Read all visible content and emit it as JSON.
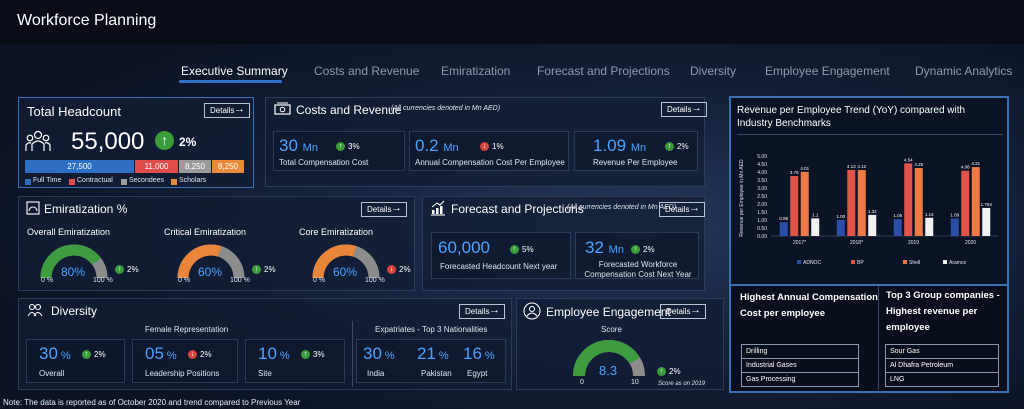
{
  "app": {
    "title": "Workforce Planning"
  },
  "tabs": [
    {
      "label": "Executive Summary",
      "active": true
    },
    {
      "label": "Costs and Revenue"
    },
    {
      "label": "Emiratization"
    },
    {
      "label": "Forecast and Projections"
    },
    {
      "label": "Diversity"
    },
    {
      "label": "Employee Engagement"
    },
    {
      "label": "Dynamic Analytics"
    }
  ],
  "details_label": "Details",
  "headcount": {
    "title": "Total Headcount",
    "value": "55,000",
    "trend": "2%",
    "segments": [
      {
        "label": "27,500",
        "value": 27500,
        "color": "#2e6fc4",
        "legend": "Full Time"
      },
      {
        "label": "11,000",
        "value": 11000,
        "color": "#e04b4b",
        "legend": "Contractual"
      },
      {
        "label": "8,250",
        "value": 8250,
        "color": "#9a9a9a",
        "legend": "Secondees"
      },
      {
        "label": "8,250",
        "value": 8250,
        "color": "#e88a3a",
        "legend": "Scholars"
      }
    ]
  },
  "costs": {
    "title": "Costs and Revenue",
    "note": "(All currencies denoted in Mn AED)",
    "kpis": [
      {
        "value": "30",
        "unit": "Mn",
        "trend": "3%",
        "dir": "up",
        "label": "Total Compensation Cost"
      },
      {
        "value": "0.2",
        "unit": "Mn",
        "trend": "1%",
        "dir": "down",
        "label": "Annual Compensation Cost Per Employee"
      },
      {
        "value": "1.09",
        "unit": "Mn",
        "trend": "2%",
        "dir": "up",
        "label": "Revenue Per Employee"
      }
    ]
  },
  "emiratization": {
    "title": "Emiratization %",
    "gauges": [
      {
        "title": "Overall Emiratization",
        "value": "80%",
        "pct": 80,
        "color": "#3e9b40",
        "min": "0 %",
        "max": "100 %",
        "trend": "2%",
        "dir": "up"
      },
      {
        "title": "Critical Emiratization",
        "value": "60%",
        "pct": 60,
        "color": "#e8853a",
        "min": "0 %",
        "max": "100 %",
        "trend": "2%",
        "dir": "up"
      },
      {
        "title": "Core Emiratization",
        "value": "60%",
        "pct": 60,
        "color": "#e8853a",
        "min": "0 %",
        "max": "100 %",
        "trend": "2%",
        "dir": "down"
      }
    ]
  },
  "forecast": {
    "title": "Forecast and Projections",
    "note": "(All currencies denoted in Mn AED)",
    "kpis": [
      {
        "value": "60,000",
        "unit": "",
        "trend": "5%",
        "label": "Forecasted Headcount Next year"
      },
      {
        "value": "32",
        "unit": "Mn",
        "trend": "2%",
        "label": "Forecasted Workforce Compensation Cost Next Year"
      }
    ]
  },
  "diversity": {
    "title": "Diversity",
    "female_title": "Female Representation",
    "female": [
      {
        "value": "30",
        "unit": "%",
        "trend": "2%",
        "dir": "up",
        "label": "Overall"
      },
      {
        "value": "05",
        "unit": "%",
        "trend": "2%",
        "dir": "down",
        "label": "Leadership Positions"
      },
      {
        "value": "10",
        "unit": "%",
        "trend": "3%",
        "dir": "up",
        "label": "Site"
      }
    ],
    "expat_title": "Expatriates - Top 3 Nationalities",
    "expat": [
      {
        "value": "30",
        "unit": "%",
        "label": "India"
      },
      {
        "value": "21",
        "unit": "%",
        "label": "Pakistan"
      },
      {
        "value": "16",
        "unit": "%",
        "label": "Egypt"
      }
    ]
  },
  "engagement": {
    "title": "Employee Engagement",
    "score_label": "Score",
    "value": "8.3",
    "score": 8.3,
    "min": "0",
    "max": "10",
    "trend": "2%",
    "note": "Score as on 2019"
  },
  "revenue_chart": {
    "title": "Revenue per Employee Trend (YoY) compared with Industry Benchmarks"
  },
  "chart_data": {
    "type": "bar",
    "title": "Revenue per Employee Trend (YoY) compared with Industry Benchmarks",
    "ylabel": "Revenue per Employee in Mn AED",
    "xlabel": "",
    "ylim": [
      0,
      5
    ],
    "yticks": [
      "0.00",
      "0.50",
      "1.00",
      "1.50",
      "2.00",
      "2.50",
      "3.00",
      "3.50",
      "4.00",
      "4.50",
      "5.00"
    ],
    "categories": [
      "2017*",
      "2018*",
      "2019",
      "2020"
    ],
    "series": [
      {
        "name": "ADNOC",
        "color": "#2b4ea8",
        "values": [
          0.86,
          1.0,
          1.05,
          1.09
        ],
        "labels": [
          "0.86",
          "1.00",
          "1.05",
          "1.09"
        ]
      },
      {
        "name": "BP",
        "color": "#e0554a",
        "values": [
          3.75,
          4.13,
          4.54,
          4.08
        ],
        "labels": [
          "3.75",
          "4.13",
          "4.54",
          "4.08"
        ]
      },
      {
        "name": "Shell",
        "color": "#f07a45",
        "values": [
          4.01,
          4.12,
          4.25,
          4.31
        ],
        "labels": [
          "4.01",
          "4.12",
          "4.25",
          "4.31"
        ]
      },
      {
        "name": "Aramco",
        "color": "#f2f2f2",
        "values": [
          1.1,
          1.32,
          1.14,
          1.754
        ],
        "labels": [
          "1.1",
          "1.32",
          "1.14",
          "1.754"
        ]
      }
    ],
    "legend": "bottom"
  },
  "highest_comp": {
    "title": "Highest Annual Compensation Cost per employee",
    "items": [
      "Drilling",
      "Industrial Gases",
      "Gas Processing"
    ]
  },
  "top3_revenue": {
    "title": "Top 3 Group companies - Highest revenue per employee",
    "items": [
      "Sour Gas",
      "Al Dhafra Petroleum",
      "LNG"
    ]
  },
  "footer": {
    "note": "Note: The data is reported as of October 2020 and trend compared to Previous Year"
  }
}
